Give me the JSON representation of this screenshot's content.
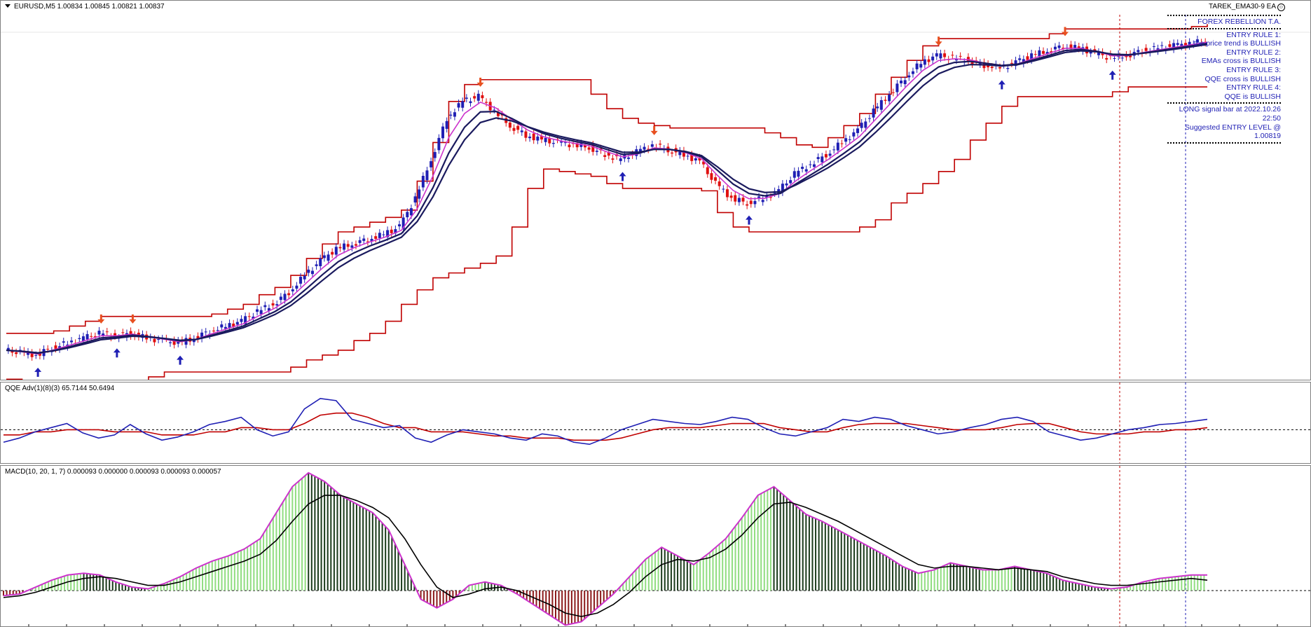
{
  "chart_header": {
    "symbol_line": "EURUSD,M5  1.00834 1.00845 1.00821 1.00837",
    "ea_label": "TAREK_EMA30-9 EA",
    "ea_icon": "smiley-icon"
  },
  "info_panel": {
    "brand": "FOREX REBELLION T.A.",
    "rules": [
      "ENTRY RULE 1:",
      "the price trend is BULLISH",
      "ENTRY RULE 2:",
      "EMAs cross is BULLISH",
      "ENTRY RULE 3:",
      "QQE cross is BULLISH",
      "ENTRY RULE 4:",
      "QQE is BULLISH"
    ],
    "signal": "LONG signal bar at 2022.10.26 22:50",
    "entry": "Suggested ENTRY LEVEL @ 1.00819"
  },
  "qqe_header": "QQE Adv(1)(8)(3) 65.7144 50.6494",
  "macd_header": "MACD(10, 20, 1, 7) 0.000093 0.000000 0.000093 0.000093 0.000057",
  "colors": {
    "bull_candle": "#1f1fb4",
    "bear_candle": "#e01010",
    "ema_fast": "#cc33cc",
    "ema_slow": "#1a1a5e",
    "channel": "#c00000",
    "qqe_fast": "#1f1fb4",
    "qqe_slow": "#c00000",
    "macd_up": "#90dd80",
    "macd_down": "#8b1a1a",
    "macd_line": "#cc33cc",
    "signal_line": "#000000"
  },
  "chart_data": [
    {
      "type": "candlestick",
      "title": "",
      "series": [
        {
          "name": "",
          "values": [
            1.0009,
            1.0008,
            1.0007,
            1.001,
            1.0012,
            1.0014,
            1.0016,
            1.0015,
            1.0016,
            1.0014,
            1.0013,
            1.0012,
            1.0014,
            1.0017,
            1.0019,
            1.0021,
            1.0025,
            1.0028,
            1.0033,
            1.004,
            1.0046,
            1.0051,
            1.0053,
            1.0055,
            1.0057,
            1.006,
            1.0072,
            1.0088,
            1.0105,
            1.0112,
            1.0114,
            1.0108,
            1.0102,
            1.0098,
            1.0096,
            1.0095,
            1.0094,
            1.0093,
            1.009,
            1.0088,
            1.0091,
            1.0094,
            1.0092,
            1.009,
            1.0087,
            1.0078,
            1.0072,
            1.007,
            1.0072,
            1.0075,
            1.0082,
            1.0086,
            1.009,
            1.0095,
            1.01,
            1.0108,
            1.0115,
            1.0122,
            1.0128,
            1.0131,
            1.013,
            1.0129,
            1.0127,
            1.0126,
            1.0128,
            1.0131,
            1.0133,
            1.0135,
            1.0134,
            1.0132,
            1.013,
            1.0131,
            1.0133,
            1.0134,
            1.0135,
            1.0136,
            1.0137
          ]
        }
      ]
    },
    {
      "type": "line",
      "title": "",
      "series": [
        {
          "name": "",
          "values": [
            38,
            42,
            48,
            52,
            56,
            47,
            42,
            45,
            55,
            46,
            40,
            43,
            48,
            55,
            58,
            62,
            50,
            44,
            48,
            70,
            80,
            78,
            60,
            56,
            52,
            54,
            42,
            38,
            45,
            50,
            48,
            46,
            42,
            40,
            46,
            44,
            38,
            36,
            42,
            50,
            55,
            60,
            58,
            56,
            55,
            58,
            62,
            60,
            52,
            46,
            44,
            48,
            52,
            60,
            58,
            62,
            60,
            54,
            50,
            46,
            48,
            52,
            55,
            60,
            62,
            58,
            48,
            44,
            40,
            42,
            46,
            50,
            52,
            55,
            56,
            58,
            60
          ]
        },
        {
          "name": "",
          "values": [
            45,
            45,
            48,
            48,
            50,
            50,
            50,
            48,
            48,
            48,
            45,
            45,
            45,
            48,
            48,
            52,
            52,
            50,
            50,
            56,
            64,
            66,
            66,
            62,
            56,
            52,
            52,
            48,
            48,
            48,
            46,
            44,
            44,
            42,
            42,
            42,
            40,
            40,
            40,
            42,
            46,
            50,
            52,
            52,
            52,
            54,
            56,
            56,
            56,
            52,
            50,
            48,
            48,
            52,
            55,
            56,
            56,
            56,
            54,
            52,
            50,
            50,
            50,
            52,
            55,
            56,
            56,
            52,
            48,
            46,
            46,
            46,
            48,
            48,
            50,
            50,
            52
          ]
        }
      ],
      "ylim": [
        0,
        100
      ]
    },
    {
      "type": "bar",
      "title": "",
      "series": [
        {
          "name": "",
          "values": [
            -3e-05,
            -2e-05,
            2e-05,
            6e-05,
            9e-05,
            0.0001,
            9e-05,
            5e-05,
            2e-05,
            1e-05,
            4e-05,
            8e-05,
            0.00013,
            0.00017,
            0.0002,
            0.00024,
            0.0003,
            0.00045,
            0.0006,
            0.00068,
            0.00063,
            0.00055,
            0.0005,
            0.00045,
            0.00035,
            0.00015,
            -5e-05,
            -0.0001,
            -5e-05,
            3e-05,
            5e-05,
            3e-05,
            -2e-05,
            -8e-05,
            -0.00014,
            -0.0002,
            -0.00018,
            -0.0001,
            -2e-05,
            8e-05,
            0.00018,
            0.00025,
            0.0002,
            0.00015,
            0.00022,
            0.0003,
            0.00042,
            0.00055,
            0.0006,
            0.00052,
            0.00044,
            0.0004,
            0.00035,
            0.0003,
            0.00025,
            0.0002,
            0.00014,
            0.0001,
            0.00012,
            0.00016,
            0.00014,
            0.00012,
            0.00012,
            0.00014,
            0.00012,
            0.0001,
            6e-05,
            4e-05,
            2e-05,
            1e-05,
            2e-05,
            5e-05,
            7e-05,
            8e-05,
            9e-05,
            9e-05
          ]
        },
        {
          "name": "",
          "values": [
            -4e-05,
            -3e-05,
            -1e-05,
            2e-05,
            5e-05,
            7e-05,
            8e-05,
            7e-05,
            5e-05,
            3e-05,
            3e-05,
            5e-05,
            8e-05,
            0.00011,
            0.00014,
            0.00017,
            0.00021,
            0.00029,
            0.0004,
            0.0005,
            0.00055,
            0.00055,
            0.00052,
            0.00048,
            0.00042,
            0.0003,
            0.00015,
            2e-05,
            -4e-05,
            -2e-05,
            1e-05,
            2e-05,
            0.0,
            -4e-05,
            -8e-05,
            -0.00013,
            -0.00015,
            -0.00013,
            -8e-05,
            -1e-05,
            8e-05,
            0.00015,
            0.00018,
            0.00017,
            0.00019,
            0.00024,
            0.00032,
            0.00042,
            0.0005,
            0.00051,
            0.00048,
            0.00044,
            0.0004,
            0.00035,
            0.0003,
            0.00025,
            0.0002,
            0.00015,
            0.00013,
            0.00014,
            0.00014,
            0.00013,
            0.00012,
            0.00013,
            0.00012,
            0.00011,
            8e-05,
            6e-05,
            4e-05,
            3e-05,
            3e-05,
            4e-05,
            5e-05,
            6e-05,
            7e-05,
            6e-05
          ]
        }
      ]
    }
  ]
}
